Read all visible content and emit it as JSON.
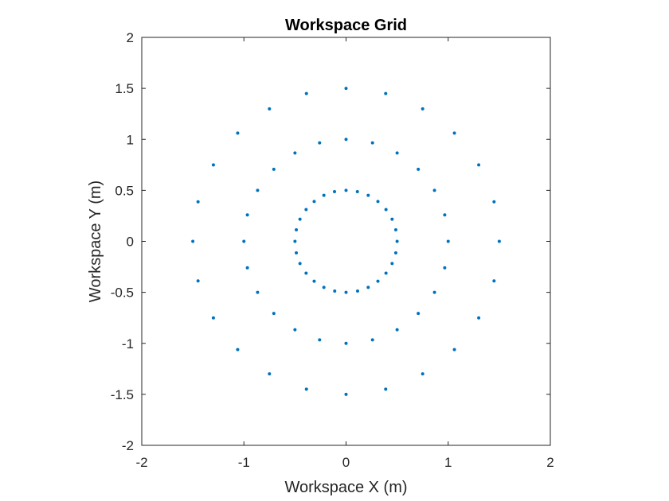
{
  "chart_data": {
    "type": "scatter",
    "title": "Workspace Grid",
    "xlabel": "Workspace X (m)",
    "ylabel": "Workspace Y (m)",
    "xlim": [
      -2,
      2
    ],
    "ylim": [
      -2,
      2
    ],
    "xticks": [
      -2,
      -1,
      0,
      1,
      2
    ],
    "yticks": [
      -2,
      -1.5,
      -1,
      -0.5,
      0,
      0.5,
      1,
      1.5,
      2
    ],
    "xtick_labels": [
      "-2",
      "-1",
      "0",
      "1",
      "2"
    ],
    "ytick_labels": [
      "-2",
      "-1.5",
      "-1",
      "-0.5",
      "0",
      "0.5",
      "1",
      "1.5",
      "2"
    ],
    "grid": false,
    "marker_color": "#0072BD",
    "series": [
      {
        "points": [
          [
            0.5,
            0
          ],
          [
            0.487,
            0.113
          ],
          [
            0.451,
            0.217
          ],
          [
            0.391,
            0.312
          ],
          [
            0.312,
            0.391
          ],
          [
            0.217,
            0.451
          ],
          [
            0.111,
            0.487
          ],
          [
            0,
            0.5
          ],
          [
            -0.113,
            0.487
          ],
          [
            -0.217,
            0.451
          ],
          [
            -0.312,
            0.391
          ],
          [
            -0.391,
            0.312
          ],
          [
            -0.451,
            0.217
          ],
          [
            -0.487,
            0.113
          ],
          [
            -0.5,
            0
          ],
          [
            -0.487,
            -0.113
          ],
          [
            -0.451,
            -0.217
          ],
          [
            -0.391,
            -0.312
          ],
          [
            -0.312,
            -0.391
          ],
          [
            -0.217,
            -0.451
          ],
          [
            -0.111,
            -0.487
          ],
          [
            0,
            -0.5
          ],
          [
            0.113,
            -0.487
          ],
          [
            0.217,
            -0.451
          ],
          [
            0.312,
            -0.391
          ],
          [
            0.391,
            -0.312
          ],
          [
            0.451,
            -0.217
          ],
          [
            0.487,
            -0.113
          ],
          [
            1,
            0
          ],
          [
            0.966,
            0.259
          ],
          [
            0.866,
            0.5
          ],
          [
            0.707,
            0.707
          ],
          [
            0.5,
            0.866
          ],
          [
            0.259,
            0.966
          ],
          [
            0,
            1
          ],
          [
            -0.259,
            0.966
          ],
          [
            -0.5,
            0.866
          ],
          [
            -0.707,
            0.707
          ],
          [
            -0.866,
            0.5
          ],
          [
            -0.966,
            0.259
          ],
          [
            -1,
            0
          ],
          [
            -0.966,
            -0.259
          ],
          [
            -0.866,
            -0.5
          ],
          [
            -0.707,
            -0.707
          ],
          [
            -0.5,
            -0.866
          ],
          [
            -0.259,
            -0.966
          ],
          [
            0,
            -1
          ],
          [
            0.259,
            -0.966
          ],
          [
            0.5,
            -0.866
          ],
          [
            0.707,
            -0.707
          ],
          [
            0.866,
            -0.5
          ],
          [
            0.966,
            -0.259
          ],
          [
            1.5,
            0
          ],
          [
            1.449,
            0.388
          ],
          [
            1.299,
            0.75
          ],
          [
            1.061,
            1.061
          ],
          [
            0.75,
            1.299
          ],
          [
            0.388,
            1.449
          ],
          [
            0,
            1.5
          ],
          [
            -0.388,
            1.449
          ],
          [
            -0.75,
            1.299
          ],
          [
            -1.061,
            1.061
          ],
          [
            -1.299,
            0.75
          ],
          [
            -1.449,
            0.388
          ],
          [
            -1.5,
            0
          ],
          [
            -1.449,
            -0.388
          ],
          [
            -1.299,
            -0.75
          ],
          [
            -1.061,
            -1.061
          ],
          [
            -0.75,
            -1.299
          ],
          [
            -0.388,
            -1.449
          ],
          [
            0,
            -1.5
          ],
          [
            0.388,
            -1.449
          ],
          [
            0.75,
            -1.299
          ],
          [
            1.061,
            -1.061
          ],
          [
            1.299,
            -0.75
          ],
          [
            1.449,
            -0.388
          ]
        ]
      }
    ]
  }
}
